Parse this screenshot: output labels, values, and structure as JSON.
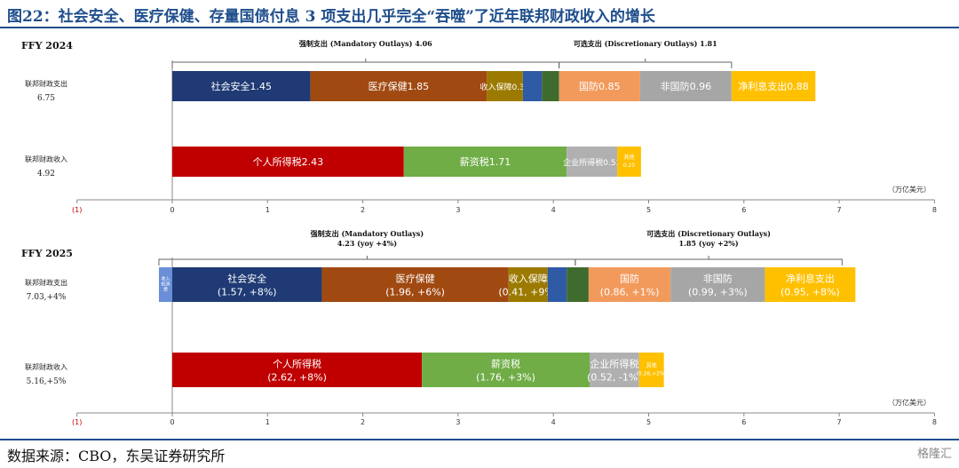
{
  "title": "图22：社会安全、医疗保健、存量国债付息 3 项支出几乎完全“吞噬”了近年联邦财政收入的增长",
  "source": "数据来源：CBO，东吴证券研究所",
  "watermark": "格隆汇",
  "colors": {
    "title": "#1f4e8c",
    "axis_neg": "#c00000"
  },
  "chart_data": [
    {
      "type": "bar",
      "orientation": "horizontal-stacked",
      "panel_title": "FFY 2024",
      "unit_label": "（万亿美元）",
      "xlim": [
        -1,
        8
      ],
      "x_ticks": [
        "(1)",
        "0",
        "1",
        "2",
        "3",
        "4",
        "5",
        "6",
        "7",
        "8"
      ],
      "categories": [
        {
          "name": "联邦财政支出",
          "total": "6.75",
          "segments": [
            {
              "label": "社会安全1.45",
              "value": 1.45,
              "color": "#1f3a74"
            },
            {
              "label": "医疗保健1.85",
              "value": 1.85,
              "color": "#a04a12"
            },
            {
              "label": "收入保障0.38",
              "value": 0.38,
              "color": "#9c7a00"
            },
            {
              "label": "",
              "value": 0.2,
              "color": "#2e5aa6"
            },
            {
              "label": "",
              "value": 0.18,
              "color": "#3f6b2e"
            },
            {
              "label": "国防0.85",
              "value": 0.85,
              "color": "#f29a5c"
            },
            {
              "label": "非国防0.96",
              "value": 0.96,
              "color": "#a6a6a6"
            },
            {
              "label": "净利息支出0.88",
              "value": 0.88,
              "color": "#ffc000"
            }
          ]
        },
        {
          "name": "联邦财政收入",
          "total": "4.92",
          "segments": [
            {
              "label": "个人所得税2.43",
              "value": 2.43,
              "color": "#c00000"
            },
            {
              "label": "薪资税1.71",
              "value": 1.71,
              "color": "#70ad47"
            },
            {
              "label": "企业所得税0.53",
              "value": 0.53,
              "color": "#b0b0b0"
            },
            {
              "label": "其他",
              "label2": "0.25",
              "value": 0.25,
              "color": "#ffc000"
            }
          ]
        }
      ],
      "brackets": [
        {
          "text": "强制支出 (Mandatory Outlays) 4.06",
          "from": 0,
          "to": 4.06
        },
        {
          "text": "可选支出 (Discretionary Outlays) 1.81",
          "from": 4.06,
          "to": 5.87
        }
      ]
    },
    {
      "type": "bar",
      "orientation": "horizontal-stacked",
      "panel_title": "FFY 2025",
      "unit_label": "（万亿美元）",
      "xlim": [
        -1,
        8
      ],
      "x_ticks": [
        "(1)",
        "0",
        "1",
        "2",
        "3",
        "4",
        "5",
        "6",
        "7",
        "8"
      ],
      "categories": [
        {
          "name": "联邦财政支出",
          "total": "7.03,+4%",
          "segments": [
            {
              "label": "收入",
              "label2": "抵消",
              "label3": "费",
              "value": -0.14,
              "color": "#6a8fd8"
            },
            {
              "label": "社会安全",
              "label2": "(1.57, +8%)",
              "value": 1.57,
              "color": "#1f3a74"
            },
            {
              "label": "医疗保健",
              "label2": "(1.96, +6%)",
              "value": 1.96,
              "color": "#a04a12"
            },
            {
              "label": "收入保障",
              "label2": "(0.41, +9%)",
              "value": 0.41,
              "color": "#9c7a00"
            },
            {
              "label": "",
              "value": 0.2,
              "color": "#2e5aa6"
            },
            {
              "label": "",
              "value": 0.23,
              "color": "#3f6b2e"
            },
            {
              "label": "国防",
              "label2": "(0.86, +1%)",
              "value": 0.86,
              "color": "#f29a5c"
            },
            {
              "label": "非国防",
              "label2": "(0.99, +3%)",
              "value": 0.99,
              "color": "#a6a6a6"
            },
            {
              "label": "净利息支出",
              "label2": "(0.95, +8%)",
              "value": 0.95,
              "color": "#ffc000"
            }
          ]
        },
        {
          "name": "联邦财政收入",
          "total": "5.16,+5%",
          "segments": [
            {
              "label": "个人所得税",
              "label2": "(2.62, +8%)",
              "value": 2.62,
              "color": "#c00000"
            },
            {
              "label": "薪资税",
              "label2": "(1.76, +3%)",
              "value": 1.76,
              "color": "#70ad47"
            },
            {
              "label": "企业所得税",
              "label2": "(0.52, -1%)",
              "value": 0.52,
              "color": "#b0b0b0"
            },
            {
              "label": "其他",
              "label2": "(0.26,+2%)",
              "value": 0.26,
              "color": "#ffc000"
            }
          ]
        }
      ],
      "brackets": [
        {
          "text": "强制支出 (Mandatory Outlays)",
          "text2": "4.23 (yoy +4%)",
          "from": -0.14,
          "to": 4.23
        },
        {
          "text": "可选支出 (Discretionary Outlays)",
          "text2": "1.85 (yoy +2%)",
          "from": 4.23,
          "to": 7.03
        }
      ]
    }
  ]
}
